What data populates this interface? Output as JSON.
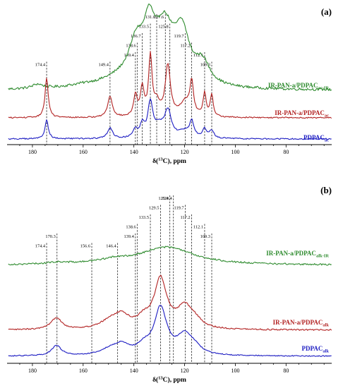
{
  "chart_data": [
    {
      "type": "line",
      "panel_label": "(a)",
      "xlabel_main": "δ(",
      "xlabel_sup": "13",
      "xlabel_tail": "C), ppm",
      "x_reversed": true,
      "xlim": [
        190,
        62
      ],
      "x_ticks": [
        180,
        160,
        140,
        120,
        100,
        80
      ],
      "grid": false,
      "legend": "inline-right",
      "peak_labels": [
        "174.4",
        "149.4",
        "139.4",
        "138.6",
        "136.7",
        "133.5",
        "131.0",
        "127.6",
        "125.8",
        "119.7",
        "117.2",
        "112.1",
        "109.3"
      ],
      "series": [
        {
          "name_main": "IR-PAN-a/PDPAC",
          "name_sub": "ac-IR",
          "color": "#2e8b2e",
          "baseline": 0.62,
          "noise": 0.012,
          "peaks": [
            [
              178,
              0.04,
              2.5
            ],
            [
              160,
              0.02,
              8
            ],
            [
              145,
              0.08,
              10
            ],
            [
              139,
              0.34,
              3.5
            ],
            [
              134,
              0.44,
              2.6
            ],
            [
              128,
              0.52,
              4.5
            ],
            [
              121,
              0.45,
              3.5
            ],
            [
              113,
              0.2,
              3.5
            ]
          ]
        },
        {
          "name_main": "IR-PAN-a/PDPAC",
          "name_sub": "ac",
          "color": "#b22222",
          "baseline": 0.14,
          "noise": 0.006,
          "peaks": [
            [
              174.4,
              0.38,
              0.75
            ],
            [
              149.4,
              0.2,
              1.1
            ],
            [
              139.4,
              0.2,
              0.8
            ],
            [
              136.7,
              0.26,
              0.9
            ],
            [
              133.5,
              0.55,
              0.8
            ],
            [
              131.0,
              0.12,
              1.5
            ],
            [
              126.6,
              0.48,
              1.2
            ],
            [
              119.7,
              0.14,
              2.5
            ],
            [
              117.2,
              0.3,
              0.8
            ],
            [
              112.1,
              0.22,
              0.7
            ],
            [
              109.3,
              0.2,
              0.7
            ]
          ]
        },
        {
          "name_main": "PDPAC",
          "name_sub": "ac",
          "color": "#1c1cc2",
          "baseline": 0.0,
          "noise": 0.006,
          "peaks": [
            [
              174.4,
              0.18,
              0.8
            ],
            [
              149.4,
              0.1,
              1.2
            ],
            [
              139.4,
              0.08,
              1.0
            ],
            [
              136.7,
              0.12,
              1.0
            ],
            [
              133.5,
              0.33,
              1.2
            ],
            [
              130,
              0.1,
              2.0
            ],
            [
              126.6,
              0.25,
              1.6
            ],
            [
              120,
              0.06,
              3.0
            ],
            [
              117.2,
              0.14,
              1.0
            ],
            [
              112.1,
              0.08,
              1.0
            ],
            [
              109.3,
              0.07,
              1.0
            ]
          ]
        }
      ]
    },
    {
      "type": "line",
      "panel_label": "(b)",
      "xlabel_main": "δ(",
      "xlabel_sup": "13",
      "xlabel_tail": "C), ppm",
      "x_reversed": true,
      "xlim": [
        190,
        62
      ],
      "x_ticks": [
        180,
        160,
        140,
        120,
        100,
        80
      ],
      "grid": false,
      "legend": "inline-right",
      "peak_labels": [
        "174.4",
        "170.3",
        "156.6",
        "146.4",
        "139.4",
        "138.6",
        "133.5",
        "129.5",
        "125.8",
        "124.4",
        "119.7",
        "117.2",
        "112.1",
        "109.3"
      ],
      "series": [
        {
          "name_main": "IR-PAN-a/PDPAC",
          "name_sub": "alk-IR",
          "color": "#2e8b2e",
          "baseline": 0.62,
          "noise": 0.01,
          "peaks": [
            [
              170,
              0.02,
              5
            ],
            [
              148,
              0.04,
              8
            ],
            [
              127,
              0.21,
              13
            ]
          ]
        },
        {
          "name_main": "IR-PAN-a/PDPAC",
          "name_sub": "alk",
          "color": "#b22222",
          "baseline": 0.1,
          "noise": 0.008,
          "peaks": [
            [
              170.5,
              0.14,
              2.5
            ],
            [
              150,
              0.07,
              4
            ],
            [
              145,
              0.16,
              4
            ],
            [
              136,
              0.1,
              3
            ],
            [
              129.5,
              0.58,
              3.0
            ],
            [
              120,
              0.24,
              3.5
            ],
            [
              116,
              0.08,
              3
            ]
          ]
        },
        {
          "name_main": "PDPAC",
          "name_sub": "alk",
          "color": "#1c1cc2",
          "baseline": 0.0,
          "noise": 0.006,
          "peaks": [
            [
              170.5,
              0.12,
              2.3
            ],
            [
              150,
              0.05,
              4
            ],
            [
              145,
              0.12,
              4
            ],
            [
              136,
              0.09,
              3
            ],
            [
              129.5,
              0.55,
              3.0
            ],
            [
              120,
              0.22,
              3.5
            ],
            [
              116,
              0.07,
              3
            ]
          ]
        }
      ]
    }
  ]
}
